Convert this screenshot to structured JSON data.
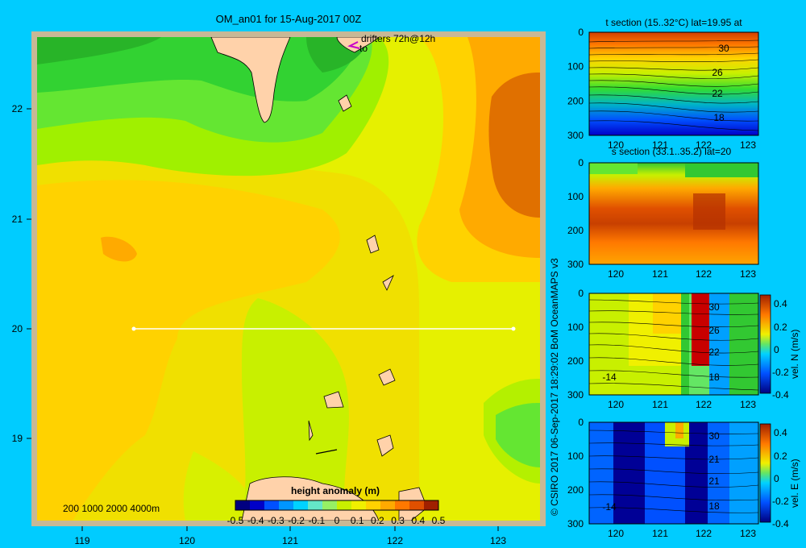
{
  "main_map": {
    "title": "OM_an01 for 15-Aug-2017 00Z",
    "drifters_label": "drifters 72h@12h",
    "drifters_sub": "to",
    "lon_ticks": [
      "119",
      "120",
      "121",
      "122",
      "123"
    ],
    "lat_ticks": [
      "22",
      "21",
      "20",
      "19"
    ],
    "depth_legend": "200  1000  2000  4000m",
    "section_line": {
      "lat": 20,
      "lon_start": 119.5,
      "lon_end": 123.2
    }
  },
  "colorbar": {
    "title": "height anomaly (m)",
    "ticks": [
      "-0.5",
      "-0.4",
      "-0.3",
      "-0.2",
      "-0.1",
      "0",
      "0.1",
      "0.2",
      "0.3",
      "0.4",
      "0.5"
    ],
    "colors": [
      "#000080",
      "#0000c8",
      "#0050ff",
      "#0096ff",
      "#00d2ff",
      "#64e6c8",
      "#96f064",
      "#c8f000",
      "#f0f000",
      "#ffd200",
      "#ffaa00",
      "#ff7800",
      "#e05000",
      "#a02000"
    ]
  },
  "sections": [
    {
      "title": "t section (15..32°C) lat=19.95 at",
      "y_ticks": [
        "0",
        "100",
        "200",
        "300"
      ],
      "x_ticks": [
        "120",
        "121",
        "122",
        "123"
      ],
      "contour_labels": [
        "30",
        "26",
        "22",
        "18"
      ],
      "cbar_ticks": [],
      "cbar_label": ""
    },
    {
      "title": "s section (33.1..35.2) lat=20",
      "y_ticks": [
        "0",
        "100",
        "200",
        "300"
      ],
      "x_ticks": [
        "120",
        "121",
        "122",
        "123"
      ],
      "contour_labels": [],
      "cbar_ticks": [],
      "cbar_label": ""
    },
    {
      "title": "",
      "y_ticks": [
        "0",
        "100",
        "200",
        "300"
      ],
      "x_ticks": [
        "120",
        "121",
        "122",
        "123"
      ],
      "contour_labels": [
        "30",
        "26",
        "22",
        "18",
        "-14"
      ],
      "cbar_ticks": [
        "0.4",
        "0.2",
        "0",
        "-0.2",
        "-0.4"
      ],
      "cbar_label": "vel. N (m/s)"
    },
    {
      "title": "",
      "y_ticks": [
        "0",
        "100",
        "200",
        "300"
      ],
      "x_ticks": [
        "120",
        "121",
        "122",
        "123"
      ],
      "contour_labels": [
        "30",
        "21",
        "21",
        "18",
        "-14"
      ],
      "cbar_ticks": [
        "0.4",
        "0.2",
        "0",
        "-0.2",
        "-0.4"
      ],
      "cbar_label": "vel. E (m/s)"
    }
  ],
  "credit": "© CSIRO 2017   06-Sep-2017 18:29:02 BoM OceanMAPS v3"
}
